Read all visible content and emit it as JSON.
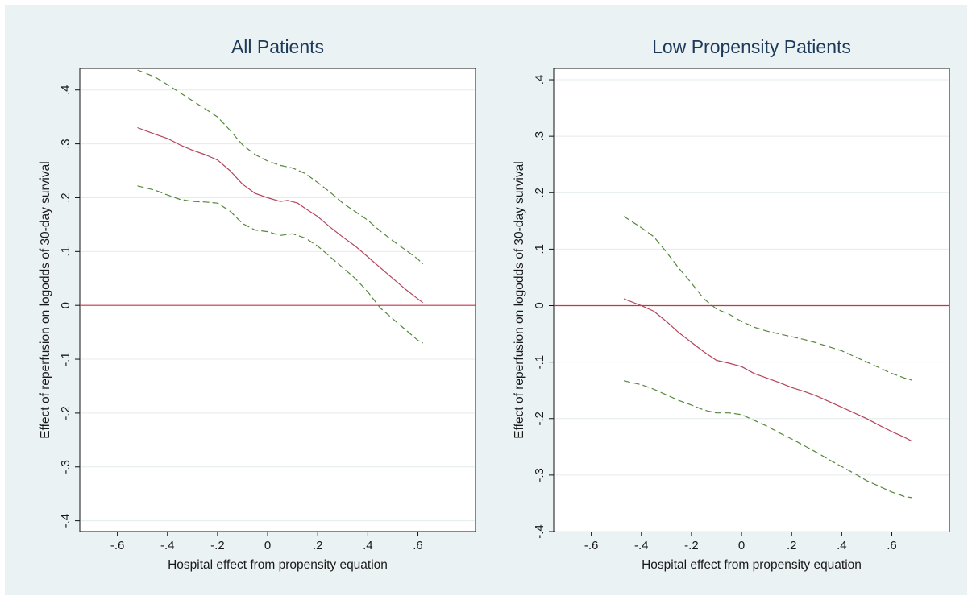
{
  "chart_data": [
    {
      "type": "line",
      "title": "All Patients",
      "xlabel": "Hospital effect from propensity equation",
      "ylabel": "Effect of reperfusion on logodds of 30-day survival",
      "xlim": [
        -0.75,
        0.83
      ],
      "ylim": [
        -0.42,
        0.44
      ],
      "xticks": [
        -0.6,
        -0.4,
        -0.2,
        0,
        0.2,
        0.4,
        0.6
      ],
      "xtick_labels": [
        "-.6",
        "-.4",
        "-.2",
        "0",
        ".2",
        ".4",
        ".6"
      ],
      "yticks": [
        -0.4,
        -0.3,
        -0.2,
        -0.1,
        0,
        0.1,
        0.2,
        0.3,
        0.4
      ],
      "ytick_labels": [
        "-.4",
        "-.3",
        "-.2",
        "-.1",
        "0",
        ".1",
        ".2",
        ".3",
        ".4"
      ],
      "grid": true,
      "reference_line_y": 0,
      "colors": {
        "estimate": "#b5435a",
        "bounds": "#55883a",
        "reference": "#c8304e",
        "grid": "#e3ebec"
      },
      "series": [
        {
          "role": "estimate",
          "style": "solid",
          "x": [
            -0.52,
            -0.45,
            -0.4,
            -0.35,
            -0.3,
            -0.25,
            -0.2,
            -0.15,
            -0.1,
            -0.05,
            0,
            0.05,
            0.08,
            0.12,
            0.15,
            0.2,
            0.25,
            0.3,
            0.35,
            0.4,
            0.45,
            0.5,
            0.55,
            0.6,
            0.62
          ],
          "y": [
            0.33,
            0.318,
            0.31,
            0.298,
            0.288,
            0.28,
            0.27,
            0.25,
            0.225,
            0.208,
            0.2,
            0.193,
            0.195,
            0.19,
            0.18,
            0.165,
            0.145,
            0.127,
            0.11,
            0.09,
            0.07,
            0.05,
            0.03,
            0.012,
            0.005
          ]
        },
        {
          "role": "upper-bound",
          "style": "dashed",
          "x": [
            -0.52,
            -0.45,
            -0.4,
            -0.35,
            -0.3,
            -0.25,
            -0.2,
            -0.15,
            -0.1,
            -0.05,
            0,
            0.05,
            0.1,
            0.15,
            0.2,
            0.25,
            0.3,
            0.35,
            0.4,
            0.45,
            0.5,
            0.55,
            0.6,
            0.62
          ],
          "y": [
            0.437,
            0.424,
            0.41,
            0.395,
            0.38,
            0.365,
            0.35,
            0.325,
            0.298,
            0.28,
            0.268,
            0.26,
            0.255,
            0.245,
            0.228,
            0.21,
            0.19,
            0.174,
            0.158,
            0.138,
            0.12,
            0.103,
            0.086,
            0.077
          ]
        },
        {
          "role": "lower-bound",
          "style": "dashed",
          "x": [
            -0.52,
            -0.45,
            -0.4,
            -0.35,
            -0.3,
            -0.25,
            -0.2,
            -0.15,
            -0.1,
            -0.05,
            0,
            0.05,
            0.1,
            0.15,
            0.2,
            0.25,
            0.3,
            0.35,
            0.4,
            0.45,
            0.5,
            0.55,
            0.6,
            0.62
          ],
          "y": [
            0.222,
            0.214,
            0.205,
            0.197,
            0.193,
            0.192,
            0.19,
            0.175,
            0.152,
            0.14,
            0.137,
            0.13,
            0.133,
            0.125,
            0.11,
            0.09,
            0.07,
            0.05,
            0.025,
            -0.005,
            -0.025,
            -0.045,
            -0.065,
            -0.07
          ]
        }
      ]
    },
    {
      "type": "line",
      "title": "Low Propensity Patients",
      "xlabel": "Hospital effect from propensity equation",
      "ylabel": "Effect of reperfusion on logodds of 30-day survival",
      "xlim": [
        -0.75,
        0.83
      ],
      "ylim": [
        -0.4,
        0.42
      ],
      "xticks": [
        -0.6,
        -0.4,
        -0.2,
        0,
        0.2,
        0.4,
        0.6
      ],
      "xtick_labels": [
        "-.6",
        "-.4",
        "-.2",
        "0",
        ".2",
        ".4",
        ".6"
      ],
      "yticks": [
        -0.4,
        -0.3,
        -0.2,
        -0.1,
        0,
        0.1,
        0.2,
        0.3,
        0.4
      ],
      "ytick_labels": [
        "-.4",
        "-.3",
        "-.2",
        "-.1",
        "0",
        ".1",
        ".2",
        ".3",
        ".4"
      ],
      "grid": true,
      "reference_line_y": 0,
      "colors": {
        "estimate": "#b5435a",
        "bounds": "#55883a",
        "reference": "#c8304e",
        "grid": "#e3ebec"
      },
      "series": [
        {
          "role": "estimate",
          "style": "solid",
          "x": [
            -0.47,
            -0.4,
            -0.35,
            -0.3,
            -0.25,
            -0.2,
            -0.15,
            -0.1,
            -0.05,
            0,
            0.05,
            0.1,
            0.15,
            0.2,
            0.25,
            0.3,
            0.35,
            0.4,
            0.45,
            0.5,
            0.55,
            0.6,
            0.65,
            0.68
          ],
          "y": [
            0.012,
            0.0,
            -0.01,
            -0.028,
            -0.048,
            -0.065,
            -0.082,
            -0.097,
            -0.102,
            -0.108,
            -0.12,
            -0.128,
            -0.136,
            -0.145,
            -0.152,
            -0.16,
            -0.17,
            -0.18,
            -0.19,
            -0.2,
            -0.212,
            -0.223,
            -0.233,
            -0.24
          ]
        },
        {
          "role": "upper-bound",
          "style": "dashed",
          "x": [
            -0.47,
            -0.4,
            -0.35,
            -0.3,
            -0.25,
            -0.2,
            -0.15,
            -0.1,
            -0.05,
            0,
            0.05,
            0.1,
            0.15,
            0.2,
            0.25,
            0.3,
            0.35,
            0.4,
            0.45,
            0.5,
            0.55,
            0.6,
            0.65,
            0.68
          ],
          "y": [
            0.158,
            0.138,
            0.122,
            0.095,
            0.066,
            0.04,
            0.012,
            -0.006,
            -0.015,
            -0.028,
            -0.038,
            -0.045,
            -0.05,
            -0.055,
            -0.06,
            -0.066,
            -0.073,
            -0.08,
            -0.09,
            -0.1,
            -0.11,
            -0.12,
            -0.128,
            -0.132
          ]
        },
        {
          "role": "lower-bound",
          "style": "dashed",
          "x": [
            -0.47,
            -0.4,
            -0.35,
            -0.3,
            -0.25,
            -0.2,
            -0.15,
            -0.1,
            -0.05,
            0,
            0.05,
            0.1,
            0.15,
            0.2,
            0.25,
            0.3,
            0.35,
            0.4,
            0.45,
            0.5,
            0.55,
            0.6,
            0.65,
            0.68
          ],
          "y": [
            -0.133,
            -0.14,
            -0.148,
            -0.158,
            -0.168,
            -0.176,
            -0.185,
            -0.19,
            -0.19,
            -0.193,
            -0.203,
            -0.213,
            -0.225,
            -0.236,
            -0.248,
            -0.26,
            -0.273,
            -0.285,
            -0.297,
            -0.31,
            -0.32,
            -0.33,
            -0.338,
            -0.34
          ]
        }
      ]
    }
  ]
}
